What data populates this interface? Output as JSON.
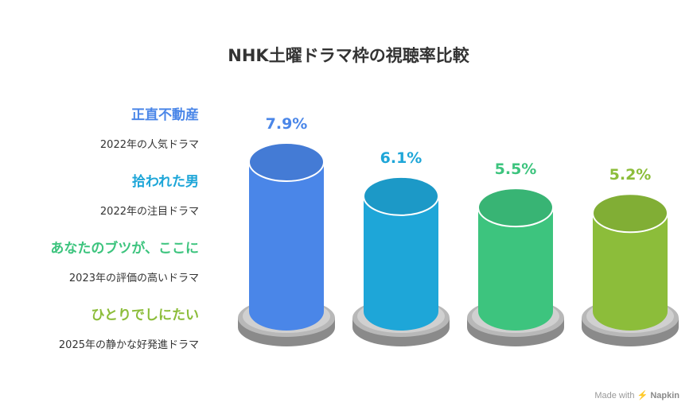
{
  "title": "NHK土曜ドラマ枠の視聴率比較",
  "chart_data": {
    "type": "bar",
    "title": "NHK土曜ドラマ枠の視聴率比較",
    "categories": [
      "正直不動産",
      "拾われた男",
      "あなたのブツが、ここに",
      "ひとりでしにたい"
    ],
    "descriptions": [
      "2022年の人気ドラマ",
      "2022年の注目ドラマ",
      "2023年の評価の高いドラマ",
      "2025年の静かな好発進ドラマ"
    ],
    "values": [
      7.9,
      6.1,
      5.5,
      5.2
    ],
    "value_labels": [
      "7.9%",
      "6.1%",
      "5.5%",
      "5.2%"
    ],
    "colors": [
      "#4a86e8",
      "#1ea6d8",
      "#3dc47e",
      "#8cbd3a"
    ],
    "label_colors": [
      "#4a86e8",
      "#1ea6d8",
      "#3dc47e",
      "#8cbd3a"
    ]
  },
  "watermark": {
    "prefix": "Made with",
    "brand": "Napkin",
    "icon": "napkin-logo-icon"
  }
}
